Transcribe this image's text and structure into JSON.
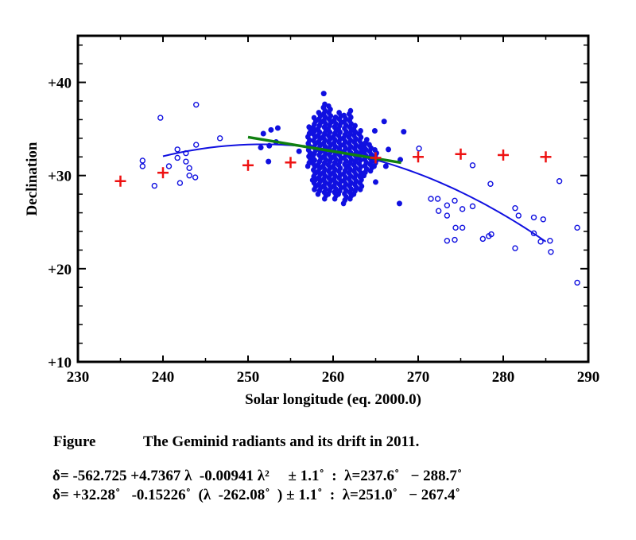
{
  "chart_data": {
    "type": "scatter",
    "title": "",
    "xlabel": "Solar longitude (eq. 2000.0)",
    "ylabel": "Declination",
    "xlim": [
      230,
      290
    ],
    "ylim": [
      10,
      45
    ],
    "xticks": [
      230,
      240,
      250,
      260,
      270,
      280,
      290
    ],
    "xtick_labels": [
      "230",
      "240",
      "250",
      "260",
      "270",
      "280",
      "290"
    ],
    "yticks": [
      10,
      20,
      30,
      40
    ],
    "ytick_labels": [
      "+10",
      "+20",
      "+30",
      "+40"
    ],
    "grid": false,
    "colors": {
      "radiants": "#1010e0",
      "crosses": "#ee1111",
      "linear_fit": "#108010",
      "quad_fit": "#1010e0"
    },
    "series": [
      {
        "name": "open radiants",
        "marker": "open-circle",
        "points": [
          [
            237.6,
            31.6
          ],
          [
            237.6,
            31.0
          ],
          [
            239.7,
            36.2
          ],
          [
            239.0,
            28.9
          ],
          [
            242.0,
            29.2
          ],
          [
            241.7,
            32.8
          ],
          [
            241.7,
            31.9
          ],
          [
            240.7,
            31.0
          ],
          [
            242.7,
            32.4
          ],
          [
            242.7,
            31.5
          ],
          [
            243.1,
            30.8
          ],
          [
            243.1,
            30.0
          ],
          [
            243.8,
            29.8
          ],
          [
            243.9,
            33.3
          ],
          [
            243.9,
            37.6
          ],
          [
            246.7,
            34.0
          ],
          [
            270.1,
            32.9
          ],
          [
            276.4,
            31.1
          ],
          [
            278.5,
            29.1
          ],
          [
            271.5,
            27.5
          ],
          [
            272.3,
            27.5
          ],
          [
            273.4,
            26.8
          ],
          [
            274.3,
            27.3
          ],
          [
            272.4,
            26.2
          ],
          [
            273.4,
            25.7
          ],
          [
            275.2,
            26.4
          ],
          [
            276.4,
            26.7
          ],
          [
            274.4,
            24.4
          ],
          [
            275.2,
            24.4
          ],
          [
            273.4,
            23.0
          ],
          [
            274.3,
            23.1
          ],
          [
            277.6,
            23.2
          ],
          [
            278.6,
            23.7
          ],
          [
            278.3,
            23.5
          ],
          [
            281.4,
            26.5
          ],
          [
            281.8,
            25.7
          ],
          [
            283.6,
            25.5
          ],
          [
            284.7,
            25.3
          ],
          [
            283.6,
            23.8
          ],
          [
            281.4,
            22.2
          ],
          [
            284.4,
            22.9
          ],
          [
            285.5,
            23.0
          ],
          [
            285.6,
            21.8
          ],
          [
            286.6,
            29.4
          ],
          [
            288.7,
            24.4
          ],
          [
            288.7,
            18.5
          ]
        ]
      },
      {
        "name": "filled radiants",
        "marker": "filled-circle",
        "points": [
          [
            251.5,
            33.0
          ],
          [
            251.8,
            34.5
          ],
          [
            252.4,
            31.5
          ],
          [
            252.5,
            33.2
          ],
          [
            252.7,
            34.9
          ],
          [
            253.5,
            35.1
          ],
          [
            253.3,
            33.6
          ],
          [
            256.0,
            32.6
          ],
          [
            264.9,
            34.8
          ],
          [
            265.0,
            29.3
          ],
          [
            266.0,
            35.8
          ],
          [
            266.2,
            31.0
          ],
          [
            266.5,
            32.8
          ],
          [
            267.8,
            27.0
          ],
          [
            267.9,
            31.7
          ],
          [
            268.3,
            34.7
          ],
          [
            258.9,
            38.8
          ],
          [
            260.5,
            28.0
          ],
          [
            257.6,
            29.5
          ]
        ],
        "dense_columns": [
          [
            257.2,
            31.0,
            35.5
          ],
          [
            257.8,
            28.5,
            36.5
          ],
          [
            258.4,
            28.0,
            37.0
          ],
          [
            259.0,
            27.5,
            38.0
          ],
          [
            259.6,
            28.0,
            37.5
          ],
          [
            260.2,
            27.5,
            36.5
          ],
          [
            260.8,
            28.0,
            37.0
          ],
          [
            261.4,
            27.0,
            36.5
          ],
          [
            262.0,
            27.5,
            37.2
          ],
          [
            262.6,
            28.0,
            35.5
          ],
          [
            263.2,
            28.5,
            35.0
          ],
          [
            263.8,
            30.0,
            34.0
          ],
          [
            264.4,
            30.5,
            33.5
          ],
          [
            265.0,
            31.0,
            33.0
          ]
        ]
      },
      {
        "name": "daily mean",
        "marker": "cross",
        "points": [
          [
            235,
            29.4
          ],
          [
            240,
            30.3
          ],
          [
            250,
            31.1
          ],
          [
            255,
            31.4
          ],
          [
            265,
            31.9
          ],
          [
            270,
            32.0
          ],
          [
            275,
            32.3
          ],
          [
            280,
            32.2
          ],
          [
            285,
            32.0
          ]
        ]
      },
      {
        "name": "quadratic fit",
        "type": "line",
        "coeffs": [
          -562.725,
          4.7367,
          -0.00941
        ],
        "range": [
          240,
          285
        ]
      },
      {
        "name": "linear fit",
        "type": "line",
        "intercept": 32.28,
        "slope": -0.15226,
        "center": 262.08,
        "range": [
          250,
          268
        ]
      }
    ]
  },
  "caption": {
    "label": "Figure",
    "text": "The Geminid radiants and its drift in 2011.",
    "eq1": "δ= -562.725 +4.7367 λ  -0.00941 λ²     ± 1.1˚  :  λ=237.6˚   − 288.7˚",
    "eq2": "δ= +32.28˚   -0.15226˚  (λ  -262.08˚  ) ± 1.1˚  :  λ=251.0˚   − 267.4˚"
  }
}
